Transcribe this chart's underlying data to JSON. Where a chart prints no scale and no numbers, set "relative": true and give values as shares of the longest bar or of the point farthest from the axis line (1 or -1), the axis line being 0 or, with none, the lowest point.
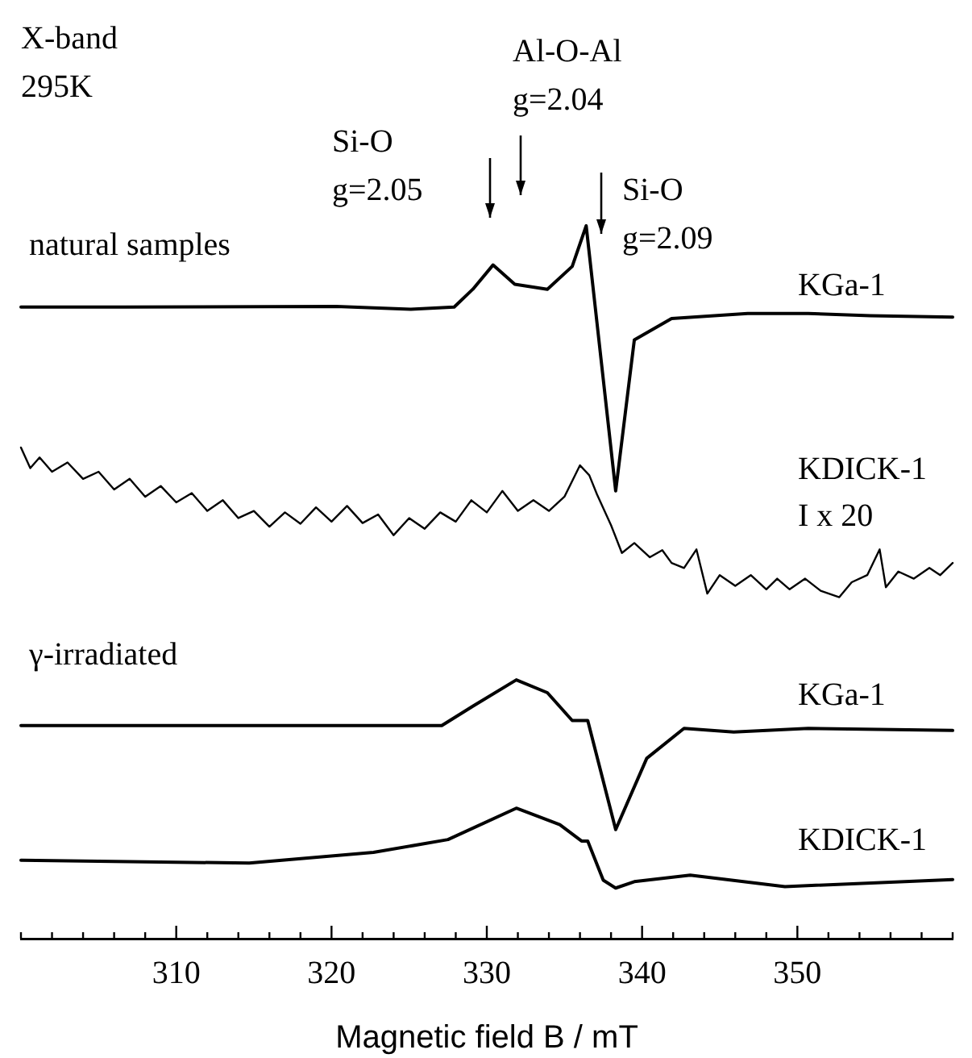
{
  "chart_data": {
    "type": "line",
    "relative": true,
    "xlabel": "Magnetic field B / mT",
    "xlim": [
      300,
      360
    ],
    "xticks": [
      {
        "value": 300,
        "label": null
      },
      {
        "value": 302,
        "label": null
      },
      {
        "value": 304,
        "label": null
      },
      {
        "value": 306,
        "label": null
      },
      {
        "value": 308,
        "label": null
      },
      310,
      {
        "value": 312,
        "label": null
      },
      {
        "value": 314,
        "label": null
      },
      {
        "value": 316,
        "label": null
      },
      {
        "value": 318,
        "label": null
      },
      320,
      {
        "value": 322,
        "label": null
      },
      {
        "value": 324,
        "label": null
      },
      {
        "value": 326,
        "label": null
      },
      {
        "value": 328,
        "label": null
      },
      330,
      {
        "value": 332,
        "label": null
      },
      {
        "value": 334,
        "label": null
      },
      {
        "value": 336,
        "label": null
      },
      {
        "value": 338,
        "label": null
      },
      340,
      {
        "value": 342,
        "label": null
      },
      {
        "value": 344,
        "label": null
      },
      {
        "value": 346,
        "label": null
      },
      {
        "value": 348,
        "label": null
      },
      350,
      {
        "value": 352,
        "label": null
      },
      {
        "value": 354,
        "label": null
      },
      {
        "value": 356,
        "label": null
      },
      {
        "value": 358,
        "label": null
      },
      {
        "value": 360,
        "label": null
      }
    ],
    "grid": false,
    "legend": false,
    "marker": "none",
    "line_style": "solid",
    "series": [
      {
        "name": "KGa-1",
        "color": "#000000",
        "x": [
          300,
          306.7,
          320.3,
          325.1,
          327.9,
          329.1,
          330.4,
          331.8,
          333.9,
          335.5,
          336.4,
          337.1,
          338.3,
          339.5,
          341.9,
          346.8,
          350.7,
          354.7,
          360
        ],
        "values": [
          0.886,
          0.886,
          0.887,
          0.883,
          0.886,
          0.911,
          0.945,
          0.918,
          0.911,
          0.943,
          1.0,
          0.863,
          0.628,
          0.84,
          0.87,
          0.877,
          0.877,
          0.874,
          0.872
        ]
      },
      {
        "name": "KDICK-1",
        "color": "#000000",
        "x": [
          300,
          300.6,
          301.2,
          302,
          303,
          304,
          305,
          306,
          307,
          308,
          309,
          310,
          311,
          312,
          313,
          314,
          315,
          316,
          317,
          318,
          319,
          320,
          321,
          322,
          323,
          324,
          325,
          326,
          327,
          328,
          329,
          330,
          331,
          332,
          333,
          334,
          335,
          336,
          336.6,
          337.1,
          338,
          338.7,
          339.5,
          340.5,
          341.3,
          341.9,
          342.7,
          343.5,
          344.2,
          345,
          346,
          347,
          348,
          348.7,
          349.5,
          350.5,
          351.5,
          352.7,
          353.5,
          354.5,
          355.3,
          355.7,
          356.5,
          357.5,
          358.5,
          359.2,
          360
        ],
        "values": [
          0.689,
          0.66,
          0.675,
          0.655,
          0.668,
          0.645,
          0.655,
          0.63,
          0.645,
          0.62,
          0.635,
          0.612,
          0.625,
          0.6,
          0.615,
          0.59,
          0.6,
          0.578,
          0.598,
          0.582,
          0.605,
          0.585,
          0.607,
          0.583,
          0.595,
          0.566,
          0.59,
          0.575,
          0.598,
          0.585,
          0.615,
          0.598,
          0.628,
          0.6,
          0.615,
          0.6,
          0.62,
          0.664,
          0.65,
          0.623,
          0.58,
          0.541,
          0.555,
          0.535,
          0.545,
          0.527,
          0.52,
          0.546,
          0.484,
          0.51,
          0.495,
          0.51,
          0.49,
          0.505,
          0.49,
          0.505,
          0.488,
          0.479,
          0.5,
          0.51,
          0.546,
          0.493,
          0.515,
          0.505,
          0.52,
          0.51,
          0.527
        ]
      },
      {
        "name": "KGa-1",
        "color": "#000000",
        "x": [
          300,
          327.1,
          329.1,
          331.9,
          333.9,
          335.5,
          336.5,
          338.3,
          340.3,
          342.7,
          345.9,
          350.7,
          360
        ],
        "values": [
          0.299,
          0.299,
          0.326,
          0.363,
          0.345,
          0.306,
          0.306,
          0.153,
          0.253,
          0.295,
          0.29,
          0.295,
          0.292
        ]
      },
      {
        "name": "KDICK-1",
        "color": "#000000",
        "x": [
          300,
          314.7,
          322.7,
          327.5,
          331.9,
          334.7,
          336.1,
          336.5,
          337.5,
          338.3,
          339.5,
          343.1,
          349.2,
          360
        ],
        "values": [
          0.11,
          0.106,
          0.121,
          0.139,
          0.183,
          0.16,
          0.137,
          0.137,
          0.082,
          0.071,
          0.08,
          0.089,
          0.073,
          0.083
        ]
      }
    ],
    "annotations": [
      "X-band\n295K",
      "natural samples",
      "I x 20",
      "γ-irradiated",
      "Si-O\ng=2.05",
      "Al-O-Al\ng=2.04",
      "Si-O\ng=2.09"
    ]
  }
}
